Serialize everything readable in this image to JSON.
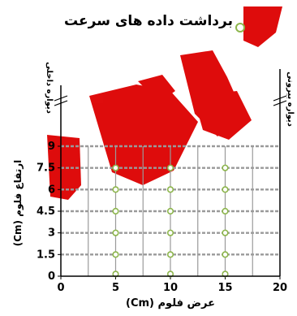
{
  "title": "برداشت داده های سرعت",
  "chart_data": {
    "type": "scatter",
    "title": "برداشت داده های سرعت",
    "xlabel": "عرض فلوم (Cm)",
    "ylabel": "ارتفاع فلوم (Cm)",
    "xlim": [
      0,
      20
    ],
    "ylim": [
      0,
      9
    ],
    "x_ticks": [
      "0",
      "5",
      "10",
      "15",
      "20"
    ],
    "y_ticks": [
      "0",
      "1.5",
      "3",
      "4.5",
      "6",
      "7.5",
      "9"
    ],
    "left_wall_label": "دیواره داخلی",
    "right_wall_label": "دیواره بیرونی",
    "marker_color": "#8db64c",
    "grid_color": "#999999",
    "points": [
      {
        "x": 5,
        "y": 0.15
      },
      {
        "x": 5,
        "y": 1.5
      },
      {
        "x": 5,
        "y": 3
      },
      {
        "x": 5,
        "y": 4.5
      },
      {
        "x": 5,
        "y": 6
      },
      {
        "x": 5,
        "y": 7.5
      },
      {
        "x": 10,
        "y": 0.15
      },
      {
        "x": 10,
        "y": 1.5
      },
      {
        "x": 10,
        "y": 3
      },
      {
        "x": 10,
        "y": 4.5
      },
      {
        "x": 10,
        "y": 6
      },
      {
        "x": 10,
        "y": 7.5
      },
      {
        "x": 15,
        "y": 0.15
      },
      {
        "x": 15,
        "y": 1.5
      },
      {
        "x": 15,
        "y": 3
      },
      {
        "x": 15,
        "y": 4.5
      },
      {
        "x": 15,
        "y": 6
      },
      {
        "x": 15,
        "y": 7.5
      }
    ]
  },
  "watermark": {
    "color": "#dd0000"
  }
}
